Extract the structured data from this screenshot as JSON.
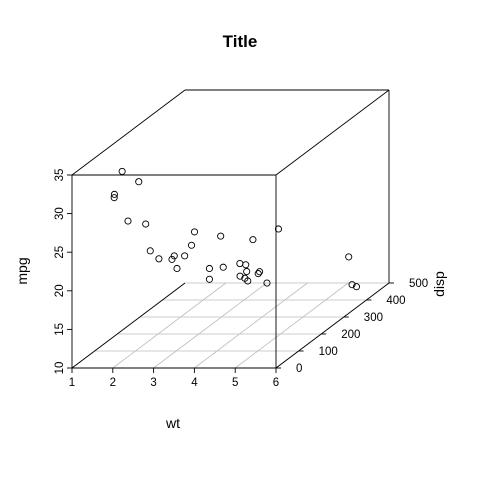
{
  "chart_data": {
    "type": "scatter",
    "title": "Title",
    "xlabel": "wt",
    "ylabel": "disp",
    "zlabel": "mpg",
    "xlim": [
      1,
      6
    ],
    "ylim": [
      0,
      500
    ],
    "zlim": [
      10,
      35
    ],
    "x_ticks": [
      "1",
      "2",
      "3",
      "4",
      "5",
      "6"
    ],
    "y_ticks": [
      "0",
      "100",
      "200",
      "300",
      "400",
      "500"
    ],
    "z_ticks": [
      "10",
      "15",
      "20",
      "25",
      "30",
      "35"
    ],
    "grid": true,
    "box": true,
    "points": [
      {
        "wt": 2.62,
        "disp": 160,
        "mpg": 21.0
      },
      {
        "wt": 2.875,
        "disp": 160,
        "mpg": 21.0
      },
      {
        "wt": 2.32,
        "disp": 108,
        "mpg": 22.8
      },
      {
        "wt": 3.215,
        "disp": 258,
        "mpg": 21.4
      },
      {
        "wt": 3.44,
        "disp": 360,
        "mpg": 18.7
      },
      {
        "wt": 3.46,
        "disp": 225,
        "mpg": 18.1
      },
      {
        "wt": 3.57,
        "disp": 360,
        "mpg": 14.3
      },
      {
        "wt": 3.19,
        "disp": 146.7,
        "mpg": 24.4
      },
      {
        "wt": 3.15,
        "disp": 140.8,
        "mpg": 22.8
      },
      {
        "wt": 3.44,
        "disp": 167.6,
        "mpg": 19.2
      },
      {
        "wt": 3.44,
        "disp": 167.6,
        "mpg": 17.8
      },
      {
        "wt": 4.07,
        "disp": 275.8,
        "mpg": 16.4
      },
      {
        "wt": 3.73,
        "disp": 275.8,
        "mpg": 17.3
      },
      {
        "wt": 3.78,
        "disp": 275.8,
        "mpg": 15.2
      },
      {
        "wt": 5.25,
        "disp": 472,
        "mpg": 10.4
      },
      {
        "wt": 5.424,
        "disp": 460,
        "mpg": 10.4
      },
      {
        "wt": 5.345,
        "disp": 440,
        "mpg": 14.7
      },
      {
        "wt": 2.2,
        "disp": 78.7,
        "mpg": 32.4
      },
      {
        "wt": 1.615,
        "disp": 75.7,
        "mpg": 30.4
      },
      {
        "wt": 1.835,
        "disp": 71.1,
        "mpg": 33.9
      },
      {
        "wt": 2.465,
        "disp": 120.1,
        "mpg": 21.5
      },
      {
        "wt": 3.52,
        "disp": 318,
        "mpg": 15.5
      },
      {
        "wt": 3.435,
        "disp": 304,
        "mpg": 15.2
      },
      {
        "wt": 3.84,
        "disp": 350,
        "mpg": 13.3
      },
      {
        "wt": 3.845,
        "disp": 400,
        "mpg": 19.2
      },
      {
        "wt": 1.935,
        "disp": 79,
        "mpg": 27.3
      },
      {
        "wt": 2.14,
        "disp": 120.3,
        "mpg": 26.0
      },
      {
        "wt": 1.513,
        "disp": 95.1,
        "mpg": 30.4
      },
      {
        "wt": 3.17,
        "disp": 351,
        "mpg": 15.8
      },
      {
        "wt": 2.77,
        "disp": 145,
        "mpg": 19.7
      },
      {
        "wt": 3.57,
        "disp": 301,
        "mpg": 15.0
      },
      {
        "wt": 2.78,
        "disp": 121,
        "mpg": 21.4
      }
    ]
  }
}
